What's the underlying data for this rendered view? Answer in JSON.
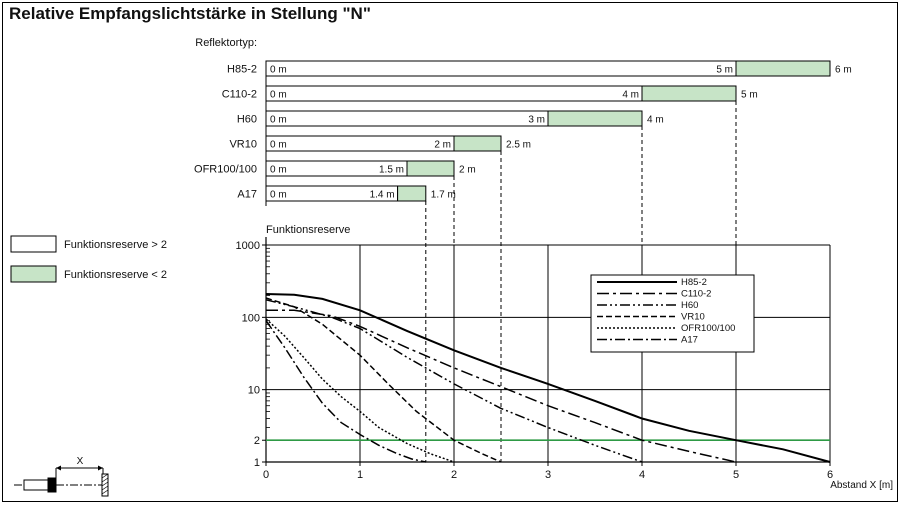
{
  "title": "Relative Empfangslichtstärke in Stellung \"N\"",
  "colors": {
    "reserve_low": "#c7e4c7",
    "two_line": "#2e9a45",
    "line": "#000000"
  },
  "chart_data": [
    {
      "type": "bar",
      "category_heading": "Reflektortyp:",
      "x_unit": "m",
      "xlim": [
        0,
        6
      ],
      "items": [
        {
          "name": "H85-2",
          "start_label": "0 m",
          "white_end": 5,
          "white_end_label": "5 m",
          "green_end": 6,
          "green_end_label": "6 m"
        },
        {
          "name": "C110-2",
          "start_label": "0 m",
          "white_end": 4,
          "white_end_label": "4 m",
          "green_end": 5,
          "green_end_label": "5 m"
        },
        {
          "name": "H60",
          "start_label": "0 m",
          "white_end": 3,
          "white_end_label": "3 m",
          "green_end": 4,
          "green_end_label": "4 m"
        },
        {
          "name": "VR10",
          "start_label": "0 m",
          "white_end": 2,
          "white_end_label": "2 m",
          "green_end": 2.5,
          "green_end_label": "2.5 m"
        },
        {
          "name": "OFR100/100",
          "start_label": "0 m",
          "white_end": 1.5,
          "white_end_label": "1.5 m",
          "green_end": 2,
          "green_end_label": "2 m"
        },
        {
          "name": "A17",
          "start_label": "0 m",
          "white_end": 1.4,
          "white_end_label": "1.4 m",
          "green_end": 1.7,
          "green_end_label": "1.7 m"
        }
      ],
      "legend": [
        {
          "label": "Funktionsreserve > 2",
          "style": "white"
        },
        {
          "label": "Funktionsreserve < 2",
          "style": "green"
        }
      ]
    },
    {
      "type": "line",
      "ylabel": "Funktionsreserve",
      "xlabel": "Abstand X [m]",
      "yscale": "log",
      "xlim": [
        0,
        6
      ],
      "ylim": [
        1,
        1000
      ],
      "x_ticks": [
        "0",
        "1",
        "2",
        "3",
        "4",
        "5",
        "6"
      ],
      "y_ticks": [
        {
          "value": 1,
          "label": "1"
        },
        {
          "value": 2,
          "label": "2"
        },
        {
          "value": 10,
          "label": "10"
        },
        {
          "value": 100,
          "label": "100"
        },
        {
          "value": 1000,
          "label": "1000"
        }
      ],
      "reference_line": {
        "y": 2
      },
      "grid": true,
      "legend_position": "right",
      "series": [
        {
          "name": "H85-2",
          "dash": "solid",
          "width": 2,
          "x": [
            0,
            0.3,
            0.6,
            1,
            1.5,
            2,
            2.5,
            3,
            3.5,
            4,
            4.5,
            5,
            5.5,
            6
          ],
          "y": [
            210,
            205,
            180,
            125,
            65,
            35,
            20,
            12,
            7,
            4,
            2.7,
            2,
            1.5,
            1
          ]
        },
        {
          "name": "C110-2",
          "dash": "12,4,3,4",
          "width": 1.5,
          "x": [
            0,
            0.3,
            0.7,
            1,
            1.5,
            2,
            2.5,
            3,
            3.5,
            4,
            4.5,
            5
          ],
          "y": [
            125,
            125,
            105,
            75,
            38,
            20,
            11,
            6,
            3.5,
            2,
            1.4,
            1
          ]
        },
        {
          "name": "H60",
          "dash": "10,3,2,3,2,3",
          "width": 1.5,
          "x": [
            0,
            0.3,
            0.7,
            1,
            1.5,
            2,
            2.5,
            3,
            3.5,
            4
          ],
          "y": [
            175,
            140,
            100,
            70,
            28,
            12,
            5.5,
            3,
            1.7,
            1
          ]
        },
        {
          "name": "VR10",
          "dash": "6,3",
          "width": 1.5,
          "x": [
            0,
            0.3,
            0.6,
            1,
            1.3,
            1.6,
            2,
            2.3,
            2.5
          ],
          "y": [
            185,
            140,
            80,
            30,
            12,
            5,
            2,
            1.3,
            1
          ]
        },
        {
          "name": "OFR100/100",
          "dash": "2,2",
          "width": 1.5,
          "x": [
            0,
            0.2,
            0.4,
            0.6,
            0.8,
            1,
            1.2,
            1.5,
            1.75,
            2
          ],
          "y": [
            95,
            55,
            28,
            14,
            8,
            5,
            3,
            1.8,
            1.3,
            1
          ]
        },
        {
          "name": "A17",
          "dash": "10,3,2,3",
          "width": 1.5,
          "x": [
            0,
            0.2,
            0.4,
            0.6,
            0.8,
            1,
            1.2,
            1.4,
            1.55,
            1.7
          ],
          "y": [
            90,
            38,
            15,
            6.5,
            3.5,
            2.4,
            1.7,
            1.3,
            1.1,
            1
          ]
        }
      ]
    }
  ]
}
